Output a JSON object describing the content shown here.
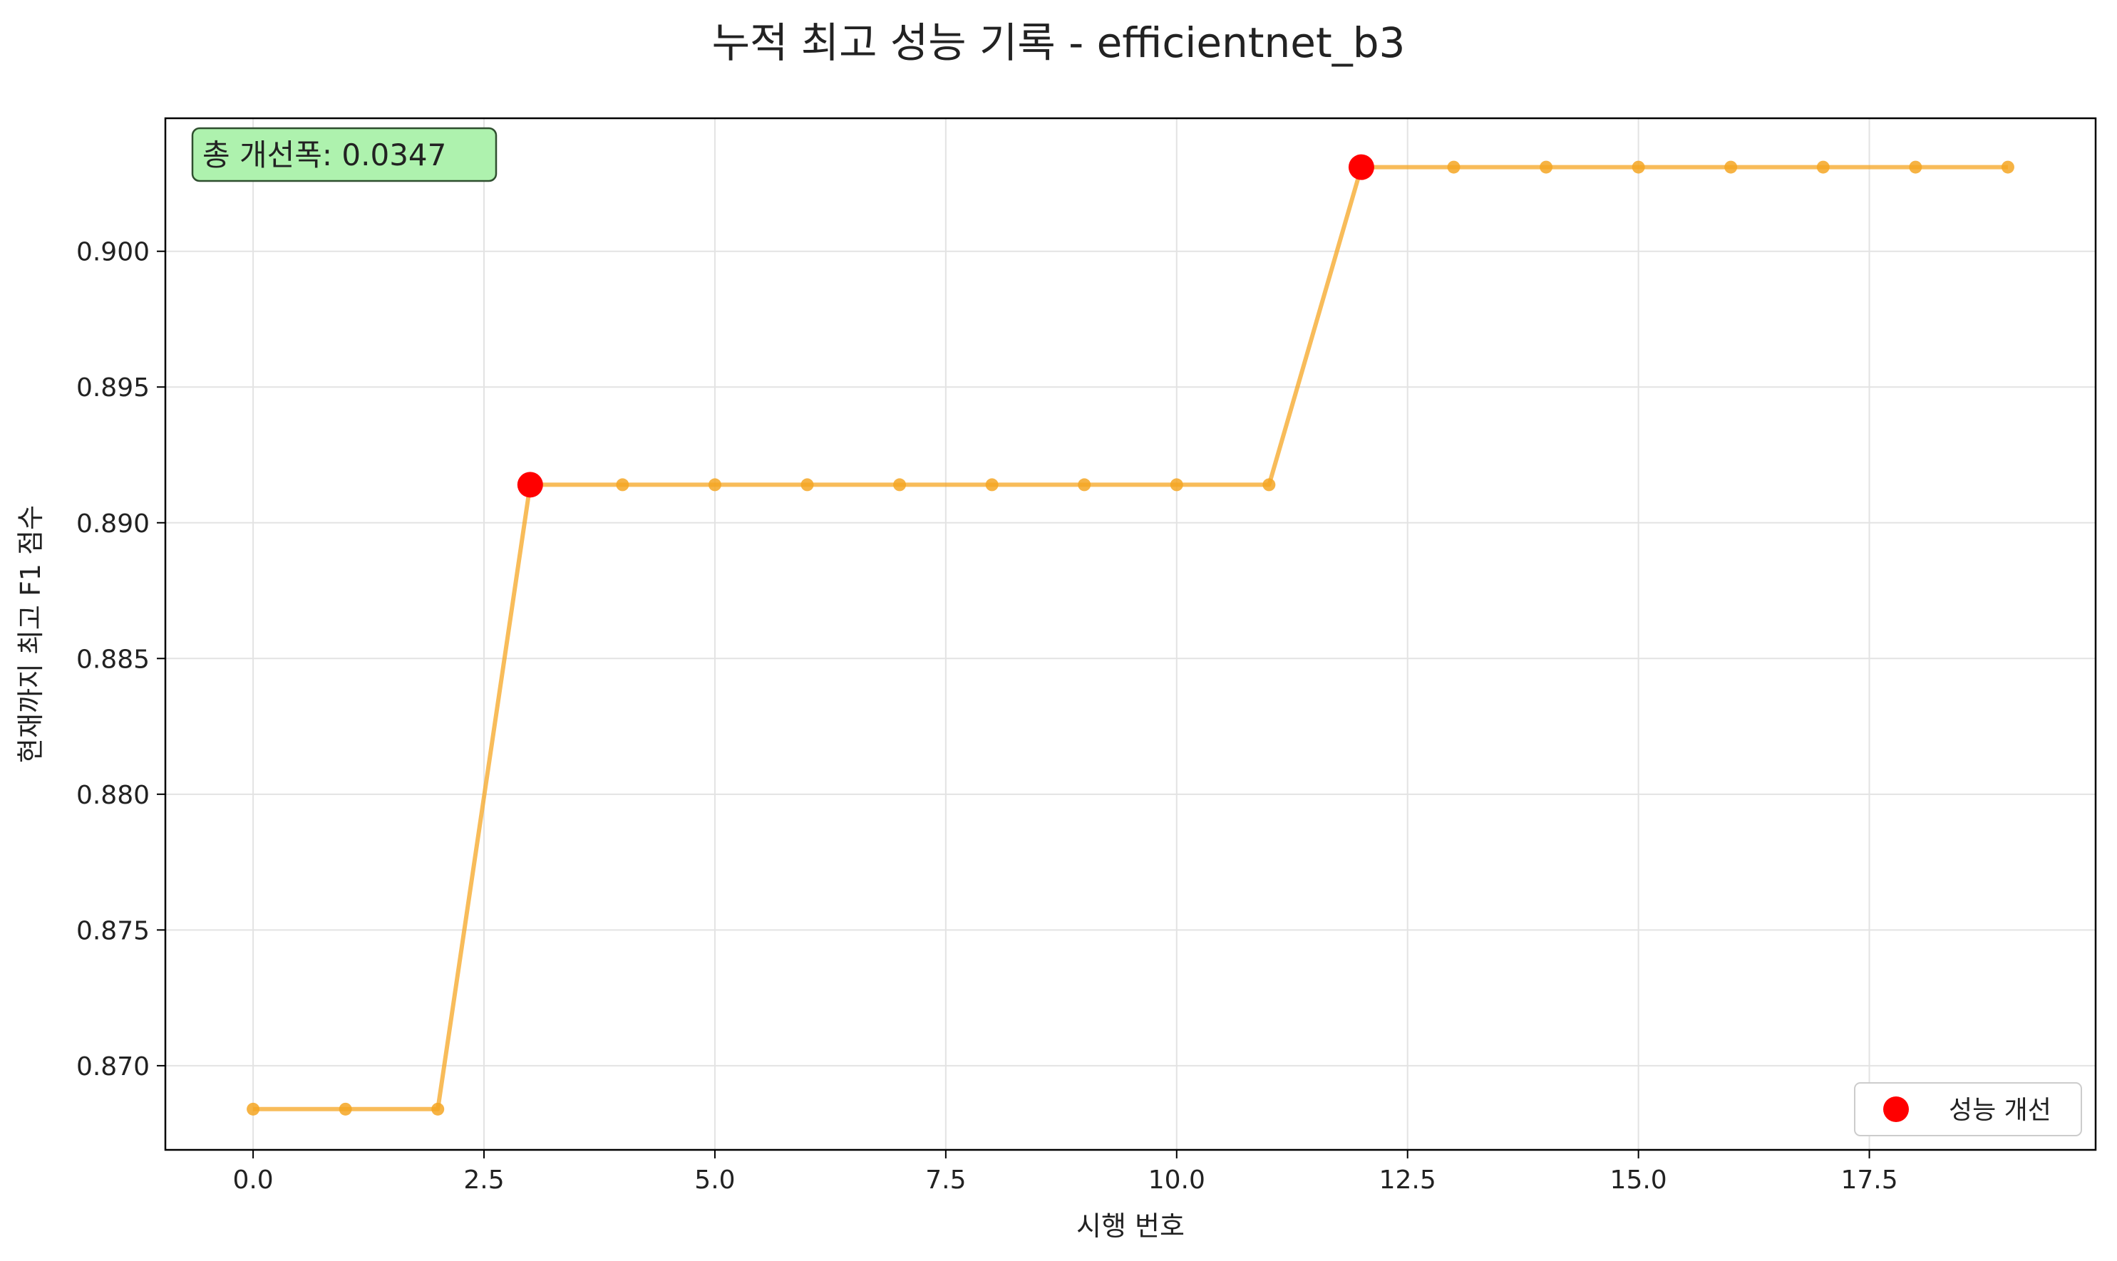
{
  "chart_data": {
    "type": "line",
    "title": "누적 최고 성능 기록 - efficientnet_b3",
    "xlabel": "시행 번호",
    "ylabel": "현재까지 최고 F1 점수",
    "xlim": [
      -0.95,
      19.95
    ],
    "ylim": [
      0.8669,
      0.9049
    ],
    "xticks": [
      0.0,
      2.5,
      5.0,
      7.5,
      10.0,
      12.5,
      15.0,
      17.5
    ],
    "xtick_labels": [
      "0.0",
      "2.5",
      "5.0",
      "7.5",
      "10.0",
      "12.5",
      "15.0",
      "17.5"
    ],
    "yticks": [
      0.87,
      0.875,
      0.88,
      0.885,
      0.89,
      0.895,
      0.9
    ],
    "ytick_labels": [
      "0.870",
      "0.875",
      "0.880",
      "0.885",
      "0.890",
      "0.895",
      "0.900"
    ],
    "grid": true,
    "series": [
      {
        "x": [
          0,
          1,
          2,
          3,
          4,
          5,
          6,
          7,
          8,
          9,
          10,
          11,
          12,
          13,
          14,
          15,
          16,
          17,
          18,
          19
        ],
        "values": [
          0.8684,
          0.8684,
          0.8684,
          0.8914,
          0.8914,
          0.8914,
          0.8914,
          0.8914,
          0.8914,
          0.8914,
          0.8914,
          0.8914,
          0.9031,
          0.9031,
          0.9031,
          0.9031,
          0.9031,
          0.9031,
          0.9031,
          0.9031
        ],
        "color": "#f5a623"
      }
    ],
    "improvements": {
      "name": "성능 개선",
      "x": [
        3,
        12
      ],
      "values": [
        0.8914,
        0.9031
      ],
      "color": "#ff0000"
    },
    "annotation": {
      "text": "총 개선폭: 0.0347",
      "background": "#aef2ae"
    },
    "legend_position": "lower-right"
  }
}
